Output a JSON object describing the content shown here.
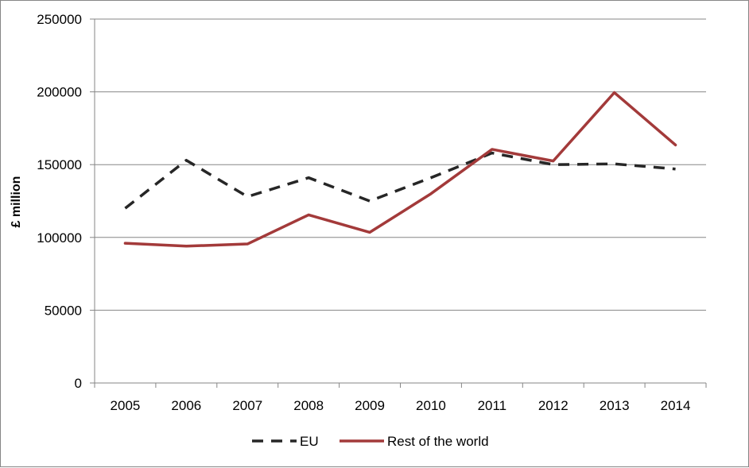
{
  "chart_data": {
    "type": "line",
    "title": "",
    "xlabel": "",
    "ylabel": "£ million",
    "categories": [
      "2005",
      "2006",
      "2007",
      "2008",
      "2009",
      "2010",
      "2011",
      "2012",
      "2013",
      "2014"
    ],
    "ylim": [
      0,
      250000
    ],
    "yticks": [
      0,
      50000,
      100000,
      150000,
      200000,
      250000
    ],
    "ytick_labels": [
      "0",
      "50000",
      "100000",
      "150000",
      "200000",
      "250000"
    ],
    "grid": "horizontal",
    "legend_position": "bottom",
    "series": [
      {
        "name": "EU",
        "color": "#262626",
        "style": "dashed",
        "values": [
          120000,
          153000,
          128000,
          141000,
          125000,
          141000,
          158000,
          150000,
          150500,
          147000
        ]
      },
      {
        "name": "Rest of the world",
        "color": "#A33A3A",
        "style": "solid",
        "values": [
          96000,
          94000,
          95500,
          115500,
          103500,
          130000,
          160500,
          152500,
          199500,
          163500
        ]
      }
    ]
  }
}
